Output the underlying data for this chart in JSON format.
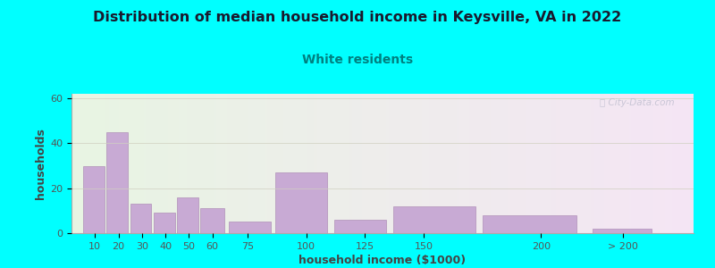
{
  "title": "Distribution of median household income in Keysville, VA in 2022",
  "subtitle": "White residents",
  "xlabel": "household income ($1000)",
  "ylabel": "households",
  "background_outer": "#00FFFF",
  "bar_color": "#c8aad4",
  "bar_edge_color": "#b090b8",
  "title_color": "#1a1a2e",
  "subtitle_color": "#008080",
  "axis_label_color": "#444444",
  "tick_label_color": "#555555",
  "grid_color": "#d0d0c0",
  "categories": [
    "10",
    "20",
    "30",
    "40",
    "50",
    "60",
    "75",
    "100",
    "125",
    "150",
    "200",
    "> 200"
  ],
  "values": [
    30,
    45,
    13,
    9,
    16,
    11,
    5,
    27,
    6,
    12,
    8,
    2
  ],
  "bar_left_edges": [
    5,
    15,
    25,
    35,
    45,
    55,
    67,
    87,
    112,
    137,
    175,
    222
  ],
  "bar_widths": [
    9,
    9,
    9,
    9,
    9,
    10,
    18,
    22,
    22,
    35,
    40,
    25
  ],
  "xtick_positions": [
    10,
    20,
    30,
    40,
    50,
    60,
    75,
    100,
    125,
    150,
    200,
    235
  ],
  "ylim": [
    0,
    62
  ],
  "yticks": [
    0,
    20,
    40,
    60
  ],
  "xlim": [
    0,
    265
  ]
}
